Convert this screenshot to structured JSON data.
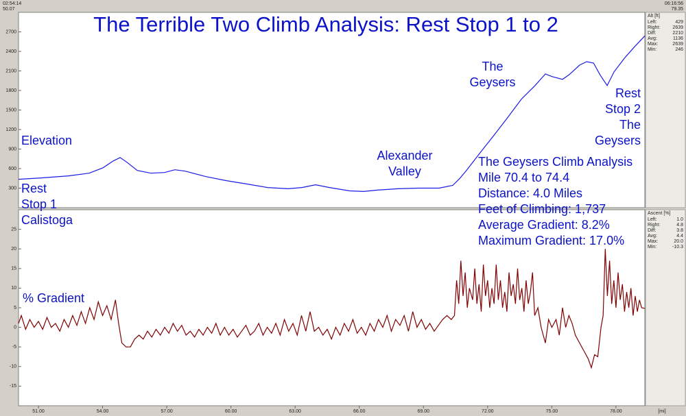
{
  "header": {
    "start_time": "02:54:14",
    "end_time": "06:16:56"
  },
  "chart_data": [
    {
      "type": "line",
      "title": "The Terrible Two Climb Analysis: Rest Stop 1 to 2",
      "annotations": {
        "series_label": "Elevation",
        "rest_stop_1": [
          "Rest",
          "Stop 1",
          "Calistoga"
        ],
        "alexander_valley": [
          "Alexander",
          "Valley"
        ],
        "the_geysers": [
          "The",
          "Geysers"
        ],
        "rest_stop_2": [
          "Rest",
          "Stop 2",
          "The",
          "Geysers"
        ],
        "analysis": [
          "The Geysers Climb Analysis",
          "Mile 70.4 to 74.4",
          "Distance: 4.0 Miles",
          "Feet of Climbing: 1,737",
          "Average Gradient: 8.2%",
          "Maximum Gradient: 17.0%"
        ]
      },
      "x": [
        50.07,
        51.13,
        52.41,
        53.37,
        54.02,
        54.5,
        54.82,
        55.14,
        55.62,
        56.26,
        56.9,
        57.38,
        57.86,
        58.83,
        59.79,
        60.75,
        61.71,
        62.67,
        63.32,
        63.96,
        64.6,
        65.56,
        66.2,
        66.84,
        67.81,
        68.77,
        69.73,
        70.37,
        70.69,
        71.01,
        71.65,
        72.3,
        72.94,
        73.58,
        74.22,
        74.7,
        75.02,
        75.5,
        75.82,
        76.3,
        76.63,
        76.95,
        77.27,
        77.59,
        77.91,
        78.39,
        78.87,
        79.35
      ],
      "values": [
        436,
        457,
        488,
        530,
        613,
        718,
        770,
        697,
        572,
        530,
        540,
        582,
        561,
        477,
        415,
        363,
        310,
        290,
        310,
        352,
        310,
        258,
        248,
        269,
        290,
        300,
        300,
        342,
        446,
        572,
        843,
        1113,
        1385,
        1667,
        1876,
        2054,
        2013,
        1971,
        2044,
        2190,
        2242,
        2221,
        2034,
        1876,
        2085,
        2294,
        2472,
        2639
      ],
      "color": "#1a1ae6",
      "xlim": [
        50.07,
        79.35
      ],
      "ylim": [
        0,
        3000
      ],
      "yticks": [
        300,
        600,
        900,
        1200,
        1500,
        1800,
        2100,
        2400,
        2700
      ],
      "stats": {
        "title": "Alt [ft]",
        "rows": [
          [
            "Left:",
            "429"
          ],
          [
            "Right:",
            "2639"
          ],
          [
            "Diff:",
            "2210"
          ],
          [
            "Avg:",
            "1136"
          ],
          [
            "Max:",
            "2639"
          ],
          [
            "Min:",
            "246"
          ]
        ]
      }
    },
    {
      "type": "line",
      "annotations": {
        "series_label": "% Gradient"
      },
      "x": [
        50.07,
        50.2,
        50.4,
        50.6,
        50.8,
        51.0,
        51.2,
        51.4,
        51.6,
        51.8,
        52.0,
        52.2,
        52.4,
        52.6,
        52.8,
        53.0,
        53.2,
        53.4,
        53.6,
        53.8,
        54.0,
        54.2,
        54.4,
        54.6,
        54.75,
        54.9,
        55.1,
        55.3,
        55.5,
        55.7,
        55.9,
        56.1,
        56.3,
        56.5,
        56.7,
        56.9,
        57.1,
        57.3,
        57.5,
        57.7,
        57.9,
        58.1,
        58.3,
        58.5,
        58.7,
        58.9,
        59.1,
        59.3,
        59.5,
        59.7,
        59.9,
        60.1,
        60.3,
        60.5,
        60.7,
        60.9,
        61.1,
        61.3,
        61.5,
        61.7,
        61.9,
        62.1,
        62.3,
        62.5,
        62.7,
        62.9,
        63.1,
        63.3,
        63.5,
        63.7,
        63.9,
        64.1,
        64.3,
        64.5,
        64.7,
        64.9,
        65.1,
        65.3,
        65.5,
        65.7,
        65.9,
        66.1,
        66.3,
        66.5,
        66.7,
        66.9,
        67.1,
        67.3,
        67.5,
        67.7,
        67.9,
        68.1,
        68.3,
        68.5,
        68.7,
        68.9,
        69.1,
        69.3,
        69.5,
        69.7,
        69.9,
        70.1,
        70.3,
        70.45,
        70.55,
        70.65,
        70.75,
        70.85,
        70.95,
        71.05,
        71.15,
        71.3,
        71.4,
        71.5,
        71.6,
        71.7,
        71.8,
        71.9,
        72.0,
        72.1,
        72.2,
        72.3,
        72.4,
        72.5,
        72.6,
        72.7,
        72.8,
        72.9,
        73.0,
        73.1,
        73.2,
        73.3,
        73.4,
        73.5,
        73.6,
        73.7,
        73.8,
        73.9,
        74.0,
        74.1,
        74.2,
        74.35,
        74.5,
        74.7,
        74.85,
        75.0,
        75.2,
        75.35,
        75.5,
        75.65,
        75.8,
        75.95,
        76.1,
        76.3,
        76.5,
        76.7,
        76.85,
        77.0,
        77.15,
        77.3,
        77.4,
        77.5,
        77.6,
        77.7,
        77.8,
        77.9,
        78.0,
        78.1,
        78.2,
        78.3,
        78.4,
        78.5,
        78.6,
        78.7,
        78.8,
        78.9,
        79.0,
        79.1,
        79.2,
        79.35
      ],
      "values": [
        1.0,
        3,
        -0.5,
        2,
        0,
        1.5,
        -0.5,
        2.5,
        0,
        1,
        -1,
        2,
        0,
        3,
        0.5,
        4,
        1,
        5,
        2,
        6.5,
        3,
        5.5,
        2,
        7,
        1,
        -4,
        -5,
        -5,
        -3,
        -2,
        -3,
        -1,
        -2.5,
        -0.5,
        -2,
        0,
        -1.5,
        1,
        -1,
        0.5,
        -2,
        -1,
        -2.5,
        -0.5,
        -2,
        0,
        -1.5,
        1,
        -2,
        0,
        -2,
        -0.5,
        -2.5,
        -1,
        0.5,
        -2,
        -1,
        1,
        -2,
        0,
        -1.5,
        1,
        -2,
        2,
        -1,
        1,
        -2,
        3,
        -1,
        4,
        -1,
        0,
        -2,
        -0.5,
        -3,
        0,
        -2,
        1,
        -1,
        2,
        -1.5,
        0,
        -2,
        1,
        -1,
        2,
        0,
        3,
        -1,
        2,
        0.5,
        3,
        -1,
        4,
        0,
        2,
        -0.5,
        1,
        -1,
        0.5,
        2,
        3,
        2,
        3,
        12,
        6,
        17,
        8,
        14,
        5,
        10,
        7,
        15,
        6,
        11,
        4,
        16,
        8,
        12,
        5,
        10,
        6,
        16,
        7,
        12,
        5,
        9,
        4,
        14,
        8,
        11,
        6,
        15,
        7,
        10,
        4,
        12,
        6,
        9,
        14,
        3,
        5,
        0,
        -4,
        2,
        0,
        2,
        -2,
        5,
        0,
        3,
        1,
        -2,
        -4,
        -6,
        -8,
        -10.3,
        -7,
        -7.5,
        0,
        3,
        20,
        8,
        17,
        6,
        12,
        5,
        14,
        7,
        11,
        4,
        9,
        5,
        10,
        3,
        8,
        4,
        7,
        5,
        4.8
      ],
      "color": "#800000",
      "xlim": [
        50.07,
        79.35
      ],
      "ylim": [
        -20,
        30
      ],
      "yticks": [
        -15,
        -10,
        -5,
        0,
        5,
        10,
        15,
        20,
        25
      ],
      "xticks": [
        {
          "value": 51,
          "label": "51.00"
        },
        {
          "value": 54,
          "label": "54.00"
        },
        {
          "value": 57,
          "label": "57.00"
        },
        {
          "value": 60,
          "label": "60.00"
        },
        {
          "value": 63,
          "label": "63.00"
        },
        {
          "value": 66,
          "label": "66.00"
        },
        {
          "value": 69,
          "label": "69.00"
        },
        {
          "value": 72,
          "label": "72.00"
        },
        {
          "value": 75,
          "label": "75.00"
        },
        {
          "value": 78,
          "label": "78.00"
        }
      ],
      "xlabel": "[mi]",
      "stats": {
        "title": "Ascent [%]",
        "rows": [
          [
            "Left:",
            "1.0"
          ],
          [
            "Right:",
            "4.8"
          ],
          [
            "Diff:",
            "3.8"
          ],
          [
            "Avg:",
            "4.4"
          ],
          [
            "Max:",
            "20.0"
          ],
          [
            "Min:",
            "-10.3"
          ]
        ]
      }
    }
  ]
}
